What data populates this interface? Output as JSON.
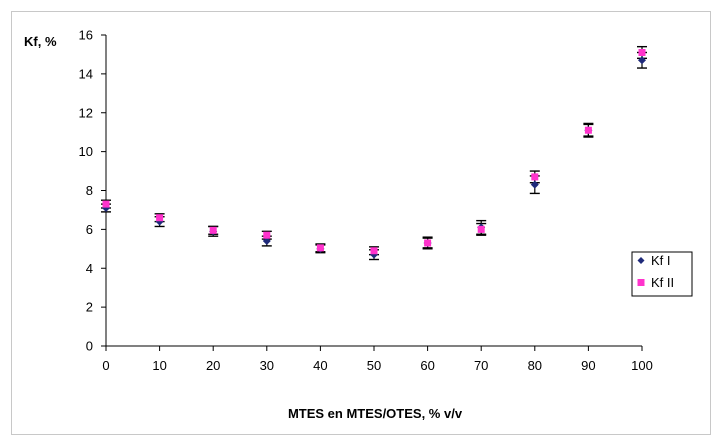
{
  "chart_data": {
    "type": "scatter",
    "title": "",
    "ylabel": "Kf, %",
    "xlabel": "MTES en MTES/OTES, % v/v",
    "xlim": [
      0,
      100
    ],
    "ylim": [
      0,
      16
    ],
    "x_ticks": [
      0,
      10,
      20,
      30,
      40,
      50,
      60,
      70,
      80,
      90,
      100
    ],
    "y_ticks": [
      0,
      2,
      4,
      6,
      8,
      10,
      12,
      14,
      16
    ],
    "grid": false,
    "legend_position": "right",
    "error_bars": true,
    "series": [
      {
        "name": "Kf I",
        "marker": "diamond",
        "color": "#1f2a7a",
        "x": [
          0,
          10,
          20,
          30,
          40,
          50,
          60,
          70,
          80,
          90,
          100
        ],
        "y": [
          7.1,
          6.4,
          5.9,
          5.4,
          5.0,
          4.7,
          5.3,
          6.1,
          8.3,
          11.1,
          14.7
        ],
        "err": [
          0.2,
          0.25,
          0.25,
          0.25,
          0.2,
          0.25,
          0.3,
          0.35,
          0.45,
          0.35,
          0.4
        ]
      },
      {
        "name": "Kf II",
        "marker": "square",
        "color": "#ff33cc",
        "x": [
          0,
          10,
          20,
          30,
          40,
          50,
          60,
          70,
          80,
          90,
          100
        ],
        "y": [
          7.3,
          6.6,
          5.95,
          5.7,
          5.05,
          4.9,
          5.3,
          6.0,
          8.7,
          11.1,
          15.1
        ],
        "err": [
          0.2,
          0.2,
          0.2,
          0.2,
          0.2,
          0.2,
          0.25,
          0.3,
          0.3,
          0.3,
          0.3
        ]
      }
    ]
  }
}
